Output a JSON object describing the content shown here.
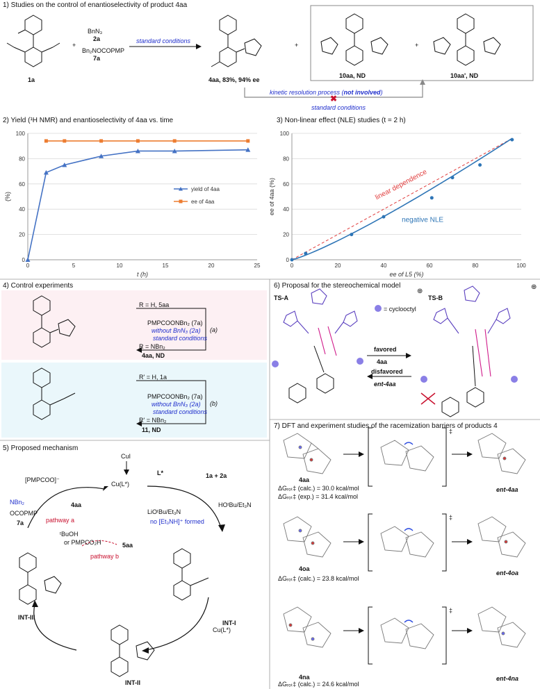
{
  "panel1": {
    "header": "1) Studies on the control of enantioselectivity of product 4aa",
    "reagent_1": "BnN₃",
    "reagent_1_id": "2a",
    "reagent_2": "Bn₂NOCOPMP",
    "reagent_2_id": "7a",
    "sm_id": "1a",
    "arrow_label": "standard conditions",
    "product": "4aa, 83%, 94% ee",
    "side1": "10aa, ND",
    "side2": "10aa', ND",
    "kr_label_pre": "kinetic resolution process (",
    "kr_label_bold": "not involved",
    "kr_label_post": ")",
    "kr_sub": "standard conditions"
  },
  "panel2": {
    "header": "2) Yield (¹H NMR) and enantioselectivity of 4aa vs. time"
  },
  "panel3": {
    "header": "3) Non-linear effect (NLE) studies (t = 2 h)",
    "line_label": "linear dependence",
    "curve_label": "negative NLE"
  },
  "chart_data": [
    {
      "type": "line",
      "xlabel": "t (h)",
      "ylabel": "(%)",
      "xlim": [
        0,
        25
      ],
      "ylim": [
        0,
        100
      ],
      "xticks": [
        0,
        5,
        10,
        15,
        20,
        25
      ],
      "yticks": [
        0,
        20,
        40,
        60,
        80,
        100
      ],
      "legend_placement": "right",
      "series": [
        {
          "name": "yield of 4aa",
          "color": "#4472c4",
          "x": [
            0,
            2,
            4,
            8,
            12,
            16,
            24
          ],
          "y": [
            0,
            69,
            75,
            82,
            86,
            86,
            87
          ]
        },
        {
          "name": "ee of 4aa",
          "color": "#ed7d31",
          "x": [
            2,
            4,
            8,
            12,
            16,
            24
          ],
          "y": [
            94,
            94,
            94,
            94,
            94,
            94
          ]
        }
      ]
    },
    {
      "type": "scatter",
      "xlabel": "ee of L5 (%)",
      "ylabel": "ee of 4aa (%)",
      "xlim": [
        0,
        100
      ],
      "ylim": [
        0,
        100
      ],
      "xticks": [
        0,
        20,
        40,
        60,
        80,
        100
      ],
      "yticks": [
        0,
        20,
        40,
        60,
        80,
        100
      ],
      "series": [
        {
          "color": "#2e75b6",
          "x": [
            0,
            6,
            26,
            40,
            61,
            70,
            82,
            96
          ],
          "y": [
            0,
            5,
            20,
            34,
            49,
            65,
            75,
            95
          ]
        }
      ]
    }
  ],
  "panel4": {
    "header": "4) Control experiments",
    "a_top": "R = H, 5aa",
    "a_reag1": "PMPCOONBn₂ (7a)",
    "a_reag2": "without BnN₃ (2a)",
    "a_reag3": "standard conditions",
    "a_tag": "(a)",
    "a_bottom": "R = NBn₂",
    "a_bottom2": "4aa, ND",
    "b_top": "R' = H, 1a",
    "b_reag1": "PMPCOONBn₂ (7a)",
    "b_reag2": "without BnN₃ (2a)",
    "b_reag3": "standard conditions",
    "b_tag": "(b)",
    "b_bottom": "R' = NBn₂",
    "b_bottom2": "11, ND"
  },
  "panel5": {
    "header": "5) Proposed mechanism",
    "cui": "CuI",
    "lstar": "L*",
    "cul": "Cu(L*)",
    "reactants": "1a + 2a",
    "pmpcoo": "[PMPCOO]⁻",
    "nbn2": "NBn₂",
    "ocopmp": "OCOPMP",
    "id7a": "7a",
    "p4aa": "4aa",
    "pathway_a": "pathway a",
    "base": "LiOᵗBu/Et₃N",
    "byprod": "HOᵗBu/Et₃N",
    "no_salt": "no [Et₃NH]⁺ formed",
    "tbuoh": "ᵗBuOH",
    "or_acid": "or PMPCO₂H",
    "p5aa": "5aa",
    "pathway_b": "pathway b",
    "int1": "INT-I",
    "int2": "INT-II",
    "int3": "INT-III",
    "cul2": "Cu(L*)"
  },
  "panel6": {
    "header": "6) Proposal for the stereochemical model",
    "tsa": "TS-A",
    "tsb": "TS-B",
    "legend": "= cyclooctyl",
    "favored": "favored",
    "fav_prod": "4aa",
    "disfavored": "disfavored",
    "disfav_prod": "ent-4aa"
  },
  "panel7": {
    "header": "7) DFT and experiment studies of the racemization barriers of products 4",
    "r1_label": "4aa",
    "r1_e1": "ΔGᵣₒₜ‡ (calc.) = 30.0 kcal/mol",
    "r1_e2": "ΔGᵣₒₜ‡ (exp.) = 31.4 kcal/mol",
    "r1_prod": "ent-4aa",
    "r2_label": "4oa",
    "r2_e1": "ΔGᵣₒₜ‡ (calc.) = 23.8 kcal/mol",
    "r2_prod": "ent-4oa",
    "r3_label": "4na",
    "r3_e1": "ΔGᵣₒₜ‡ (calc.) = 24.6 kcal/mol",
    "r3_prod": "ent-4na",
    "dagger": "‡"
  }
}
